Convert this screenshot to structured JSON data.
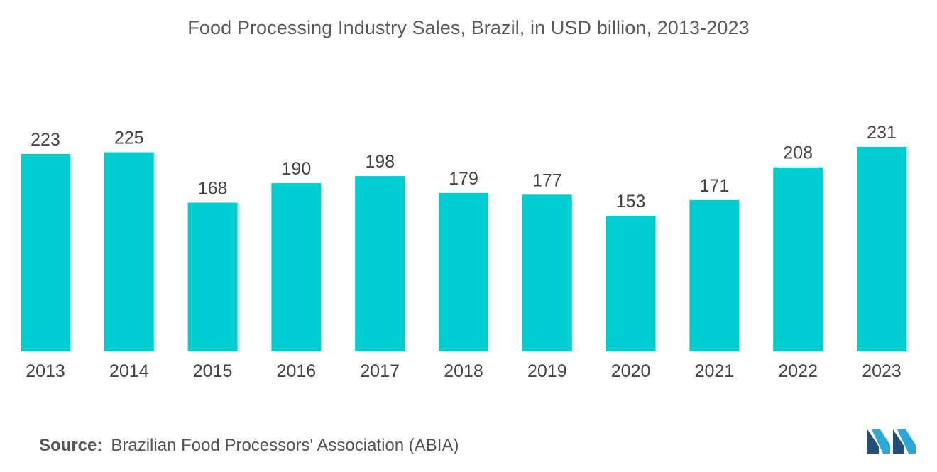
{
  "colors": {
    "bar": "#00cdd0",
    "logo_dark": "#1f4e79",
    "logo_light": "#2ba8d8"
  },
  "chart_data": {
    "type": "bar",
    "title": "Food Processing Industry Sales, Brazil, in USD billion, 2013-2023",
    "xlabel": "",
    "ylabel": "",
    "categories": [
      "2013",
      "2014",
      "2015",
      "2016",
      "2017",
      "2018",
      "2019",
      "2020",
      "2021",
      "2022",
      "2023"
    ],
    "values": [
      223,
      225,
      168,
      190,
      198,
      179,
      177,
      153,
      171,
      208,
      231
    ],
    "ylim": [
      0,
      231
    ],
    "grid": false,
    "legend": "none"
  },
  "footer": {
    "source_label": "Source:",
    "source_text": "Brazilian Food Processors' Association (ABIA)"
  },
  "logo": {
    "icon": "mordor-logo-icon"
  }
}
